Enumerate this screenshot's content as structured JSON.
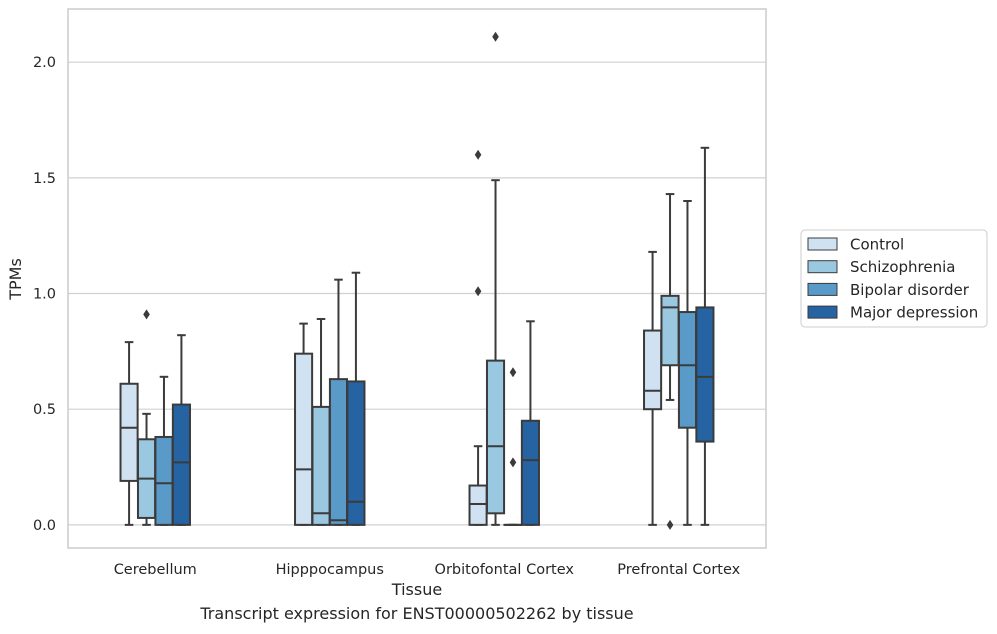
{
  "caption": "Transcript expression for ENST00000502262 by tissue",
  "chart_data": {
    "type": "box",
    "title": "",
    "xlabel": "Tissue",
    "ylabel": "TPMs",
    "ylim": [
      -0.1,
      2.23
    ],
    "yticks": [
      0.0,
      0.5,
      1.0,
      1.5,
      2.0
    ],
    "ytick_labels": [
      "0.0",
      "0.5",
      "1.0",
      "1.5",
      "2.0"
    ],
    "grid": "horizontal",
    "legend_position": "right",
    "categories": [
      "Cerebellum",
      "Hipppocampus",
      "Orbitofontal Cortex",
      "Prefrontal Cortex"
    ],
    "series": [
      {
        "name": "Control",
        "color": "#d0e1f2",
        "boxes": [
          {
            "whislo": 0.0,
            "q1": 0.19,
            "med": 0.42,
            "q3": 0.61,
            "whishi": 0.79,
            "fliers": []
          },
          {
            "whislo": 0.0,
            "q1": 0.0,
            "med": 0.24,
            "q3": 0.74,
            "whishi": 0.87,
            "fliers": []
          },
          {
            "whislo": 0.0,
            "q1": 0.0,
            "med": 0.09,
            "q3": 0.17,
            "whishi": 0.34,
            "fliers": [
              1.01,
              1.6
            ]
          },
          {
            "whislo": 0.0,
            "q1": 0.5,
            "med": 0.58,
            "q3": 0.84,
            "whishi": 1.18,
            "fliers": []
          }
        ]
      },
      {
        "name": "Schizophrenia",
        "color": "#9ac8e0",
        "boxes": [
          {
            "whislo": 0.0,
            "q1": 0.03,
            "med": 0.2,
            "q3": 0.37,
            "whishi": 0.48,
            "fliers": [
              0.91
            ]
          },
          {
            "whislo": 0.0,
            "q1": 0.0,
            "med": 0.05,
            "q3": 0.51,
            "whishi": 0.89,
            "fliers": []
          },
          {
            "whislo": 0.0,
            "q1": 0.05,
            "med": 0.34,
            "q3": 0.71,
            "whishi": 1.49,
            "fliers": [
              2.11
            ]
          },
          {
            "whislo": 0.54,
            "q1": 0.69,
            "med": 0.94,
            "q3": 0.99,
            "whishi": 1.43,
            "fliers": [
              0.0
            ]
          }
        ]
      },
      {
        "name": "Bipolar disorder",
        "color": "#5a9ac8",
        "boxes": [
          {
            "whislo": 0.0,
            "q1": 0.0,
            "med": 0.18,
            "q3": 0.38,
            "whishi": 0.64,
            "fliers": []
          },
          {
            "whislo": 0.0,
            "q1": 0.0,
            "med": 0.02,
            "q3": 0.63,
            "whishi": 1.06,
            "fliers": []
          },
          {
            "whislo": 0.0,
            "q1": 0.0,
            "med": 0.0,
            "q3": 0.0,
            "whishi": 0.0,
            "fliers": [
              0.27,
              0.66
            ]
          },
          {
            "whislo": 0.0,
            "q1": 0.42,
            "med": 0.69,
            "q3": 0.92,
            "whishi": 1.4,
            "fliers": []
          }
        ]
      },
      {
        "name": "Major depression",
        "color": "#2563a3",
        "boxes": [
          {
            "whislo": 0.0,
            "q1": 0.0,
            "med": 0.27,
            "q3": 0.52,
            "whishi": 0.82,
            "fliers": []
          },
          {
            "whislo": 0.0,
            "q1": 0.0,
            "med": 0.1,
            "q3": 0.62,
            "whishi": 1.09,
            "fliers": []
          },
          {
            "whislo": 0.0,
            "q1": 0.0,
            "med": 0.28,
            "q3": 0.45,
            "whishi": 0.88,
            "fliers": []
          },
          {
            "whislo": 0.0,
            "q1": 0.36,
            "med": 0.64,
            "q3": 0.94,
            "whishi": 1.63,
            "fliers": []
          }
        ]
      }
    ]
  }
}
